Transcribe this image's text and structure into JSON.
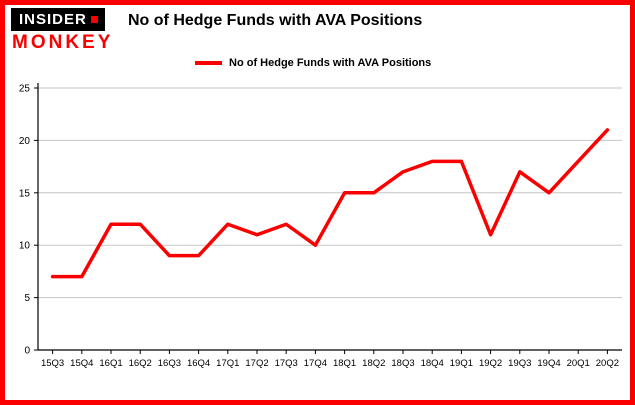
{
  "brand": {
    "line1": "INSIDER",
    "line2": "MONKEY"
  },
  "title": "No of Hedge Funds with AVA Positions",
  "legend": {
    "label": "No of Hedge Funds with AVA Positions",
    "color": "#fa0000"
  },
  "colors": {
    "border": "#fa0000",
    "line": "#fa0000",
    "grid": "#c6c6c6",
    "axis": "#000000"
  },
  "chart_data": {
    "type": "line",
    "title": "No of Hedge Funds with AVA Positions",
    "categories": [
      "15Q3",
      "15Q4",
      "16Q1",
      "16Q2",
      "16Q3",
      "16Q4",
      "17Q1",
      "17Q2",
      "17Q3",
      "17Q4",
      "18Q1",
      "18Q2",
      "18Q3",
      "18Q4",
      "19Q1",
      "19Q2",
      "19Q3",
      "19Q4",
      "20Q1",
      "20Q2"
    ],
    "values": [
      7,
      7,
      12,
      12,
      9,
      9,
      12,
      11,
      12,
      10,
      15,
      15,
      17,
      18,
      18,
      11,
      17,
      15,
      18,
      21
    ],
    "series_name": "No of Hedge Funds with AVA Positions",
    "xlabel": "",
    "ylabel": "",
    "ylim": [
      0,
      25
    ],
    "yticks": [
      0,
      5,
      10,
      15,
      20,
      25
    ],
    "grid": true,
    "legend_position": "top-left"
  }
}
